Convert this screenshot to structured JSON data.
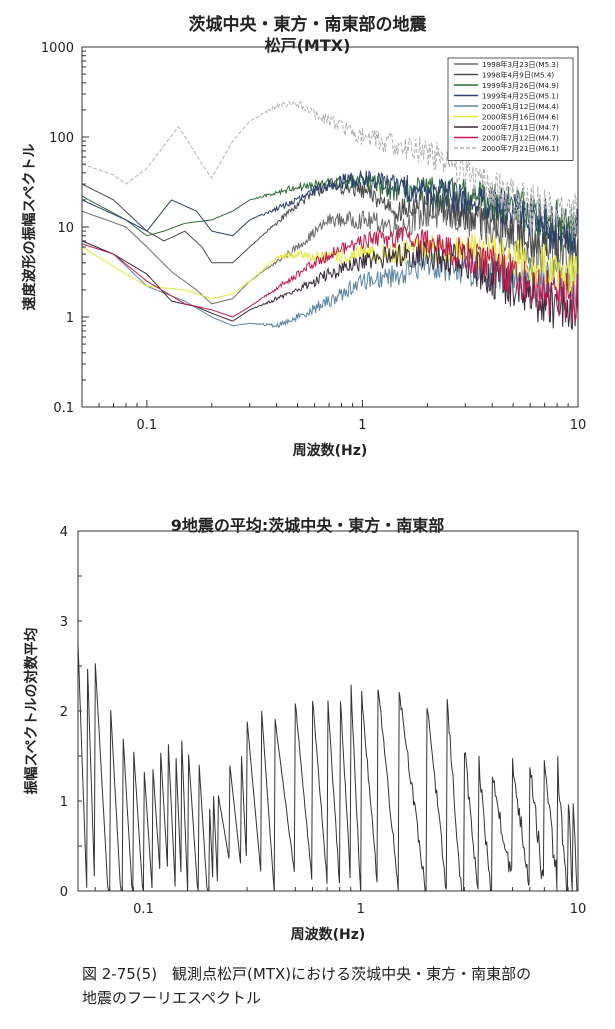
{
  "chart_data": [
    {
      "type": "line",
      "title": "茨城中央・東方・南東部の地震",
      "subtitle": "松戸(MTX)",
      "xlabel": "周波数(Hz)",
      "ylabel": "速度波形の振幅スペクトル",
      "xscale": "log",
      "yscale": "log",
      "xlim": [
        0.05,
        10
      ],
      "ylim": [
        0.1,
        1000
      ],
      "xticks": [
        "0.1",
        "1",
        "10"
      ],
      "yticks": [
        "0.1",
        "1",
        "10",
        "100",
        "1000"
      ],
      "grid": false,
      "legend_position": "top-right",
      "noise": 0.3,
      "series": [
        {
          "name": "1998年3月23日(M5.3)",
          "color": "#6b6b6b",
          "dash": "",
          "points": [
            [
              0.05,
              15
            ],
            [
              0.08,
              10
            ],
            [
              0.1,
              6
            ],
            [
              0.13,
              3.2
            ],
            [
              0.17,
              2
            ],
            [
              0.2,
              1.4
            ],
            [
              0.25,
              1.6
            ],
            [
              0.3,
              2.5
            ],
            [
              0.5,
              6
            ],
            [
              0.7,
              12
            ],
            [
              1,
              12
            ],
            [
              1.5,
              10
            ],
            [
              2,
              14
            ],
            [
              3,
              12
            ],
            [
              5,
              7
            ],
            [
              7,
              5
            ],
            [
              10,
              4
            ]
          ]
        },
        {
          "name": "1998年4月9日(M5.4)",
          "color": "#4a4a4a",
          "dash": "",
          "points": [
            [
              0.05,
              30
            ],
            [
              0.07,
              20
            ],
            [
              0.1,
              9
            ],
            [
              0.12,
              7
            ],
            [
              0.15,
              9
            ],
            [
              0.18,
              6
            ],
            [
              0.2,
              4
            ],
            [
              0.25,
              4
            ],
            [
              0.3,
              6
            ],
            [
              0.5,
              18
            ],
            [
              0.7,
              30
            ],
            [
              1,
              25
            ],
            [
              1.5,
              15
            ],
            [
              2,
              18
            ],
            [
              3,
              15
            ],
            [
              5,
              10
            ],
            [
              7,
              7
            ],
            [
              10,
              6
            ]
          ]
        },
        {
          "name": "1999年3月26日(M4.9)",
          "color": "#2f6a3a",
          "dash": "",
          "points": [
            [
              0.05,
              22
            ],
            [
              0.08,
              12
            ],
            [
              0.1,
              8
            ],
            [
              0.12,
              9
            ],
            [
              0.15,
              11
            ],
            [
              0.2,
              12
            ],
            [
              0.25,
              15
            ],
            [
              0.3,
              20
            ],
            [
              0.5,
              28
            ],
            [
              0.7,
              30
            ],
            [
              1,
              32
            ],
            [
              1.5,
              25
            ],
            [
              2,
              25
            ],
            [
              3,
              22
            ],
            [
              5,
              18
            ],
            [
              7,
              12
            ],
            [
              10,
              9
            ]
          ]
        },
        {
          "name": "1999年4月25日(M5.1)",
          "color": "#2a3f6e",
          "dash": "",
          "points": [
            [
              0.05,
              20
            ],
            [
              0.08,
              12
            ],
            [
              0.1,
              9
            ],
            [
              0.13,
              20
            ],
            [
              0.17,
              15
            ],
            [
              0.2,
              9
            ],
            [
              0.25,
              8
            ],
            [
              0.3,
              12
            ],
            [
              0.5,
              20
            ],
            [
              0.7,
              30
            ],
            [
              1,
              35
            ],
            [
              1.5,
              28
            ],
            [
              2,
              25
            ],
            [
              3,
              20
            ],
            [
              5,
              15
            ],
            [
              7,
              12
            ],
            [
              10,
              8
            ]
          ]
        },
        {
          "name": "2000年1月12日(M4.4)",
          "color": "#5c86a8",
          "dash": "",
          "points": [
            [
              0.05,
              7
            ],
            [
              0.07,
              5
            ],
            [
              0.1,
              2.2
            ],
            [
              0.15,
              1.5
            ],
            [
              0.2,
              1.0
            ],
            [
              0.25,
              0.8
            ],
            [
              0.3,
              0.85
            ],
            [
              0.4,
              0.8
            ],
            [
              0.5,
              1.0
            ],
            [
              0.7,
              1.5
            ],
            [
              1,
              2.5
            ],
            [
              1.5,
              3
            ],
            [
              2,
              4
            ],
            [
              3,
              3.5
            ],
            [
              5,
              3
            ],
            [
              7,
              2.5
            ],
            [
              10,
              2
            ]
          ]
        },
        {
          "name": "2000年5月16日(M4.6)",
          "color": "#e6e63a",
          "dash": "",
          "points": [
            [
              0.05,
              6
            ],
            [
              0.08,
              3
            ],
            [
              0.1,
              2.2
            ],
            [
              0.15,
              2
            ],
            [
              0.2,
              1.6
            ],
            [
              0.25,
              1.8
            ],
            [
              0.3,
              2.5
            ],
            [
              0.4,
              4.5
            ],
            [
              0.5,
              5
            ],
            [
              0.7,
              4.5
            ],
            [
              1,
              5
            ],
            [
              1.5,
              5
            ],
            [
              2,
              6
            ],
            [
              3,
              5.5
            ],
            [
              5,
              4.5
            ],
            [
              7,
              3.5
            ],
            [
              10,
              3
            ]
          ]
        },
        {
          "name": "2000年7月11日(M4.7)",
          "color": "#3a2a3a",
          "dash": "",
          "points": [
            [
              0.05,
              7
            ],
            [
              0.07,
              5
            ],
            [
              0.1,
              3
            ],
            [
              0.13,
              1.5
            ],
            [
              0.17,
              1.3
            ],
            [
              0.2,
              1.1
            ],
            [
              0.25,
              0.9
            ],
            [
              0.3,
              1.2
            ],
            [
              0.5,
              2
            ],
            [
              0.7,
              3
            ],
            [
              1,
              4
            ],
            [
              1.5,
              5
            ],
            [
              2,
              5
            ],
            [
              3,
              4
            ],
            [
              5,
              2
            ],
            [
              7,
              1.5
            ],
            [
              10,
              1.2
            ]
          ]
        },
        {
          "name": "2000年7月12日(M4.7)",
          "color": "#c21a4f",
          "dash": "",
          "points": [
            [
              0.05,
              6.5
            ],
            [
              0.07,
              5
            ],
            [
              0.1,
              2.5
            ],
            [
              0.15,
              1.4
            ],
            [
              0.2,
              1.2
            ],
            [
              0.25,
              1.0
            ],
            [
              0.3,
              1.3
            ],
            [
              0.5,
              3
            ],
            [
              0.7,
              5
            ],
            [
              1,
              7
            ],
            [
              1.5,
              8
            ],
            [
              2,
              7
            ],
            [
              3,
              5
            ],
            [
              5,
              3
            ],
            [
              7,
              2
            ],
            [
              10,
              1.5
            ]
          ]
        },
        {
          "name": "2000年7月21日(M6.1)",
          "color": "#b0b0b0",
          "dash": "4 2",
          "points": [
            [
              0.05,
              50
            ],
            [
              0.07,
              38
            ],
            [
              0.08,
              30
            ],
            [
              0.1,
              45
            ],
            [
              0.12,
              80
            ],
            [
              0.14,
              130
            ],
            [
              0.16,
              80
            ],
            [
              0.18,
              50
            ],
            [
              0.2,
              35
            ],
            [
              0.25,
              90
            ],
            [
              0.3,
              150
            ],
            [
              0.4,
              220
            ],
            [
              0.5,
              240
            ],
            [
              0.6,
              180
            ],
            [
              0.8,
              130
            ],
            [
              1,
              100
            ],
            [
              1.5,
              80
            ],
            [
              2,
              70
            ],
            [
              3,
              40
            ],
            [
              5,
              20
            ],
            [
              7,
              15
            ],
            [
              10,
              12
            ]
          ]
        }
      ]
    },
    {
      "type": "line",
      "title": "9地震の平均:茨城中央・東方・南東部",
      "xlabel": "周波数(Hz)",
      "ylabel": "振幅スペクトルの対数平均",
      "xscale": "log",
      "xlim": [
        0.05,
        10
      ],
      "ylim": [
        0,
        4
      ],
      "xticks": [
        "0.1",
        "1",
        "10"
      ],
      "yticks": [
        "0",
        "1",
        "2",
        "3",
        "4"
      ],
      "grid": false,
      "noise": 0.15,
      "series": [
        {
          "color": "#333333",
          "points": [
            [
              0.05,
              2.75
            ],
            [
              0.055,
              2.68
            ],
            [
              0.06,
              2.55
            ],
            [
              0.07,
              2.2
            ],
            [
              0.08,
              1.85
            ],
            [
              0.09,
              1.6
            ],
            [
              0.1,
              1.48
            ],
            [
              0.11,
              1.45
            ],
            [
              0.12,
              1.55
            ],
            [
              0.13,
              1.68
            ],
            [
              0.14,
              1.72
            ],
            [
              0.15,
              1.72
            ],
            [
              0.16,
              1.65
            ],
            [
              0.18,
              1.45
            ],
            [
              0.2,
              1.15
            ],
            [
              0.21,
              1.09
            ],
            [
              0.22,
              1.1
            ],
            [
              0.25,
              1.4
            ],
            [
              0.28,
              1.7
            ],
            [
              0.3,
              1.9
            ],
            [
              0.35,
              2.0
            ],
            [
              0.4,
              1.98
            ],
            [
              0.5,
              2.1
            ],
            [
              0.6,
              2.15
            ],
            [
              0.7,
              2.25
            ],
            [
              0.8,
              2.3
            ],
            [
              0.9,
              2.35
            ],
            [
              1,
              2.3
            ],
            [
              1.2,
              2.3
            ],
            [
              1.5,
              2.25
            ],
            [
              2,
              2.2
            ],
            [
              2.5,
              2.1
            ],
            [
              3,
              1.6
            ],
            [
              3.5,
              1.4
            ],
            [
              4,
              1.3
            ],
            [
              5,
              1.4
            ],
            [
              6,
              1.45
            ],
            [
              7,
              1.4
            ],
            [
              8,
              1.5
            ],
            [
              9,
              1.2
            ],
            [
              9.5,
              0.9
            ],
            [
              10,
              0.7
            ]
          ]
        }
      ]
    }
  ],
  "caption": {
    "line1": "図 2-75(5)　観測点松戸(MTX)における茨城中央・東方・南東部の",
    "line2": "地震のフーリエスペクトル"
  }
}
